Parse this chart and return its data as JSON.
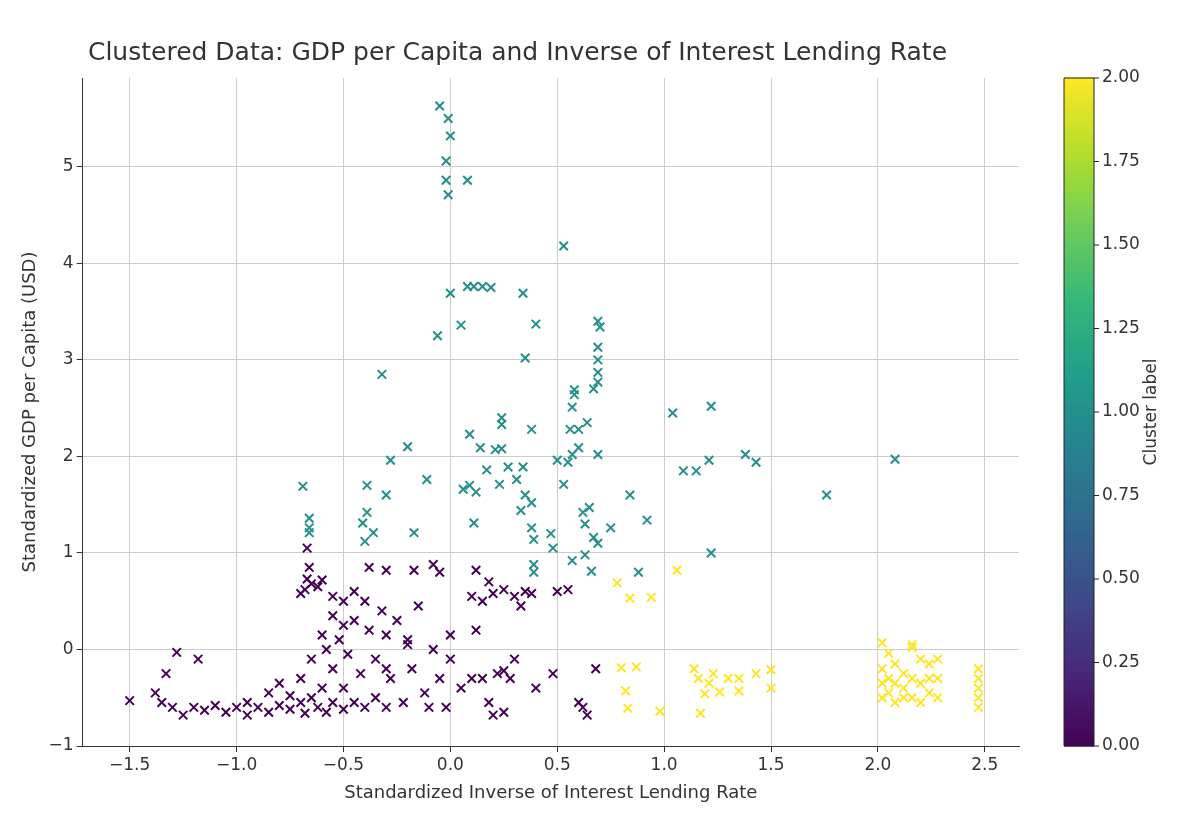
{
  "chart_data": {
    "type": "scatter",
    "title": "Clustered Data: GDP per Capita and Inverse of Interest Lending Rate",
    "xlabel": "Standardized Inverse of Interest Lending Rate",
    "ylabel": "Standardized GDP per Capita (USD)",
    "clabel": "Cluster label",
    "xlim": [
      -1.72,
      2.66
    ],
    "ylim": [
      -1,
      5.92
    ],
    "xticks": [
      {
        "value": -1.5,
        "label": "−1.5"
      },
      {
        "value": -1,
        "label": "−1.0"
      },
      {
        "value": -0.5,
        "label": "−0.5"
      },
      {
        "value": 0,
        "label": "0.0"
      },
      {
        "value": 0.5,
        "label": "0.5"
      },
      {
        "value": 1,
        "label": "1.0"
      },
      {
        "value": 1.5,
        "label": "1.5"
      },
      {
        "value": 2,
        "label": "2.0"
      },
      {
        "value": 2.5,
        "label": "2.5"
      }
    ],
    "yticks": [
      {
        "value": -1,
        "label": "−1"
      },
      0,
      1,
      2,
      3,
      4,
      5
    ],
    "clim": [
      0,
      2
    ],
    "cticks": [
      {
        "value": 0,
        "label": "0.00"
      },
      {
        "value": 0.25,
        "label": "0.25"
      },
      {
        "value": 0.5,
        "label": "0.50"
      },
      {
        "value": 0.75,
        "label": "0.75"
      },
      {
        "value": 1,
        "label": "1.00"
      },
      {
        "value": 1.25,
        "label": "1.25"
      },
      {
        "value": 1.5,
        "label": "1.50"
      },
      {
        "value": 1.75,
        "label": "1.75"
      },
      {
        "value": 2,
        "label": "2.00"
      }
    ],
    "grid": true,
    "marker": "cross",
    "x": [
      -0.05,
      -0.01,
      0,
      -0.02,
      -0.02,
      -0.01,
      0.08,
      0.53,
      0,
      0.08,
      0.11,
      0.15,
      0.19,
      0.34,
      0.05,
      0.4,
      -0.06,
      0.35,
      -0.32,
      0.69,
      0.7,
      0.69,
      0.69,
      0.69,
      0.69,
      0.67,
      0.58,
      0.58,
      0.57,
      0.38,
      0.24,
      0.24,
      0.09,
      0.14,
      0.21,
      0.24,
      0.17,
      0.23,
      0.31,
      0.34,
      0.27,
      0.35,
      0.38,
      0.33,
      0.38,
      0.39,
      0.39,
      0.39,
      0.47,
      0.11,
      0.12,
      0.09,
      0.06,
      -0.11,
      -0.2,
      -0.28,
      -0.3,
      -0.39,
      -0.39,
      -0.41,
      -0.36,
      -0.4,
      -0.17,
      -0.69,
      -0.66,
      -0.66,
      -0.66,
      0.53,
      0.55,
      0.5,
      0.57,
      0.56,
      0.64,
      0.6,
      0.69,
      0.6,
      0.62,
      0.65,
      0.63,
      0.48,
      0.67,
      0.57,
      0.63,
      0.69,
      0.75,
      0.66,
      1.04,
      1.22,
      1.09,
      1.15,
      1.21,
      1.38,
      1.43,
      1.76,
      2.08,
      0.84,
      0.92,
      0.88,
      1.22,
      1.06,
      0.78,
      0.84,
      0.94,
      0.8,
      0.87,
      0.82,
      0.83,
      0.98,
      1.17,
      1.14,
      1.16,
      1.21,
      1.23,
      1.3,
      1.35,
      1.43,
      1.19,
      1.26,
      1.35,
      1.5,
      1.5,
      2.02,
      2.05,
      2.16,
      2.02,
      2.02,
      2.02,
      2.05,
      2.05,
      2.08,
      2.08,
      2.08,
      2.12,
      2.12,
      2.12,
      2.16,
      2.16,
      2.16,
      2.2,
      2.2,
      2.2,
      2.24,
      2.24,
      2.24,
      2.28,
      2.28,
      2.28,
      2.47,
      2.47,
      2.47,
      2.47,
      2.47,
      -1.5,
      -1.38,
      -1.35,
      -1.33,
      -1.28,
      -1.18,
      -1.3,
      -1.25,
      -1.2,
      -1.15,
      -1.1,
      -1.05,
      -1,
      -0.95,
      -0.95,
      -0.9,
      -0.85,
      -0.85,
      -0.8,
      -0.8,
      -0.75,
      -0.75,
      -0.7,
      -0.7,
      -0.68,
      -0.65,
      -0.65,
      -0.62,
      -0.6,
      -0.6,
      -0.58,
      -0.55,
      -0.55,
      -0.52,
      -0.5,
      -0.5,
      -0.48,
      -0.45,
      -0.45,
      -0.42,
      -0.4,
      -0.4,
      -0.38,
      -0.35,
      -0.35,
      -0.32,
      -0.3,
      -0.3,
      -0.28,
      -0.25,
      -0.22,
      -0.2,
      -0.18,
      -0.15,
      -0.12,
      -0.1,
      -0.08,
      -0.05,
      -0.02,
      0,
      0.05,
      0.1,
      0.12,
      0.15,
      0.18,
      0.2,
      0.22,
      0.25,
      0.25,
      0.28,
      0.3,
      0.35,
      0.4,
      0.48,
      0.5,
      0.55,
      0.6,
      0.62,
      0.64,
      0.68,
      -0.7,
      -0.68,
      -0.67,
      -0.65,
      -0.62,
      -0.66,
      -0.67,
      -0.6,
      -0.55,
      -0.5,
      -0.45,
      -0.38,
      -0.3,
      -0.17,
      -0.08,
      -0.05,
      0.12,
      0.1,
      0.15,
      0.18,
      0.2,
      0.25,
      0.3,
      0.33,
      0.38,
      -0.55,
      -0.5,
      -0.2,
      0,
      -0.58,
      -0.3
    ],
    "values": [
      5.63,
      5.5,
      5.32,
      5.06,
      4.86,
      4.71,
      4.86,
      4.18,
      3.69,
      3.76,
      3.76,
      3.76,
      3.75,
      3.69,
      3.36,
      3.37,
      3.25,
      3.02,
      2.85,
      3.4,
      3.34,
      3.13,
      3,
      2.87,
      2.77,
      2.7,
      2.69,
      2.64,
      2.51,
      2.28,
      2.4,
      2.33,
      2.23,
      2.09,
      2.07,
      2.08,
      1.86,
      1.71,
      1.76,
      1.89,
      1.89,
      1.6,
      1.52,
      1.44,
      1.26,
      1.14,
      0.88,
      0.8,
      1.2,
      1.31,
      1.63,
      1.7,
      1.66,
      1.76,
      2.1,
      1.96,
      1.6,
      1.7,
      1.42,
      1.31,
      1.21,
      1.12,
      1.21,
      1.69,
      1.36,
      1.26,
      1.21,
      1.71,
      1.94,
      1.96,
      2.02,
      2.28,
      2.35,
      2.28,
      2.02,
      2.09,
      1.42,
      1.47,
      1.3,
      1.05,
      1.16,
      0.92,
      0.98,
      1.1,
      1.26,
      0.81,
      2.45,
      2.52,
      1.85,
      1.85,
      1.96,
      2.02,
      1.94,
      1.6,
      1.97,
      1.6,
      1.34,
      0.8,
      1,
      0.82,
      0.69,
      0.53,
      0.54,
      -0.19,
      -0.18,
      -0.43,
      -0.61,
      -0.64,
      -0.66,
      -0.2,
      -0.3,
      -0.35,
      -0.25,
      -0.3,
      -0.3,
      -0.25,
      -0.46,
      -0.44,
      -0.43,
      -0.21,
      -0.4,
      0.07,
      -0.04,
      0.05,
      -0.2,
      -0.35,
      -0.5,
      -0.3,
      -0.45,
      -0.15,
      -0.35,
      -0.55,
      -0.25,
      -0.4,
      -0.5,
      0.02,
      -0.3,
      -0.5,
      -0.1,
      -0.35,
      -0.55,
      -0.15,
      -0.3,
      -0.45,
      -0.1,
      -0.3,
      -0.5,
      -0.2,
      -0.3,
      -0.4,
      -0.5,
      -0.6,
      -0.53,
      -0.45,
      -0.55,
      -0.25,
      -0.03,
      -0.1,
      -0.6,
      -0.68,
      -0.6,
      -0.63,
      -0.58,
      -0.65,
      -0.6,
      -0.55,
      -0.68,
      -0.6,
      -0.65,
      -0.45,
      -0.58,
      -0.35,
      -0.62,
      -0.48,
      -0.55,
      -0.3,
      -0.66,
      -0.5,
      -0.1,
      -0.6,
      -0.4,
      0.15,
      -0.65,
      -0.55,
      -0.2,
      0.1,
      -0.62,
      -0.4,
      -0.05,
      -0.55,
      0.3,
      -0.25,
      -0.6,
      0.5,
      0.2,
      -0.5,
      -0.1,
      0.4,
      -0.6,
      0.15,
      -0.3,
      0.3,
      -0.55,
      0.05,
      -0.2,
      0.45,
      -0.45,
      -0.6,
      0,
      -0.3,
      -0.6,
      -0.1,
      -0.4,
      -0.3,
      0.2,
      -0.3,
      -0.55,
      -0.68,
      -0.25,
      -0.22,
      -0.65,
      -0.3,
      -0.1,
      0.6,
      -0.4,
      -0.25,
      0.6,
      0.62,
      -0.55,
      -0.6,
      -0.68,
      -0.2,
      0.58,
      0.62,
      0.73,
      0.68,
      0.65,
      0.85,
      1.05,
      0.72,
      0.55,
      0.5,
      0.6,
      0.85,
      0.82,
      0.82,
      0.88,
      0.8,
      0.82,
      0.55,
      0.5,
      0.7,
      0.58,
      0.62,
      0.55,
      0.45,
      0.58,
      0.35,
      0.25,
      0.1,
      0.15,
      0,
      -0.2
    ],
    "cvalues": [
      1,
      1,
      1,
      1,
      1,
      1,
      1,
      1,
      1,
      1,
      1,
      1,
      1,
      1,
      1,
      1,
      1,
      1,
      1,
      1,
      1,
      1,
      1,
      1,
      1,
      1,
      1,
      1,
      1,
      1,
      1,
      1,
      1,
      1,
      1,
      1,
      1,
      1,
      1,
      1,
      1,
      1,
      1,
      1,
      1,
      1,
      1,
      1,
      1,
      1,
      1,
      1,
      1,
      1,
      1,
      1,
      1,
      1,
      1,
      1,
      1,
      1,
      1,
      1,
      1,
      1,
      1,
      1,
      1,
      1,
      1,
      1,
      1,
      1,
      1,
      1,
      1,
      1,
      1,
      1,
      1,
      1,
      1,
      1,
      1,
      1,
      1,
      1,
      1,
      1,
      1,
      1,
      1,
      1,
      1,
      1,
      1,
      1,
      1,
      2,
      2,
      2,
      2,
      2,
      2,
      2,
      2,
      2,
      2,
      2,
      2,
      2,
      2,
      2,
      2,
      2,
      2,
      2,
      2,
      2,
      2,
      2,
      2,
      2,
      2,
      2,
      2,
      2,
      2,
      2,
      2,
      2,
      2,
      2,
      2,
      2,
      2,
      2,
      2,
      2,
      2,
      2,
      2,
      2,
      2,
      2,
      2,
      2,
      2,
      2,
      2,
      2,
      0,
      0,
      0,
      0,
      0,
      0,
      0,
      0,
      0,
      0,
      0,
      0,
      0,
      0,
      0,
      0,
      0,
      0,
      0,
      0,
      0,
      0,
      0,
      0,
      0,
      0,
      0,
      0,
      0,
      0,
      0,
      0,
      0,
      0,
      0,
      0,
      0,
      0,
      0,
      0,
      0,
      0,
      0,
      0,
      0,
      0,
      0,
      0,
      0,
      0,
      0,
      0,
      0,
      0,
      0,
      0,
      0,
      0,
      0,
      0,
      0,
      0,
      0,
      0,
      0,
      0,
      0,
      0,
      0,
      0,
      0,
      0,
      0,
      0,
      0,
      0,
      0,
      0,
      0,
      0,
      0,
      0,
      0,
      0,
      0,
      0,
      0,
      0,
      0,
      0,
      0,
      0,
      0,
      0,
      0,
      0,
      0,
      0,
      0,
      0,
      0,
      0,
      0,
      0,
      0,
      0,
      0,
      0,
      0,
      0,
      0
    ]
  }
}
